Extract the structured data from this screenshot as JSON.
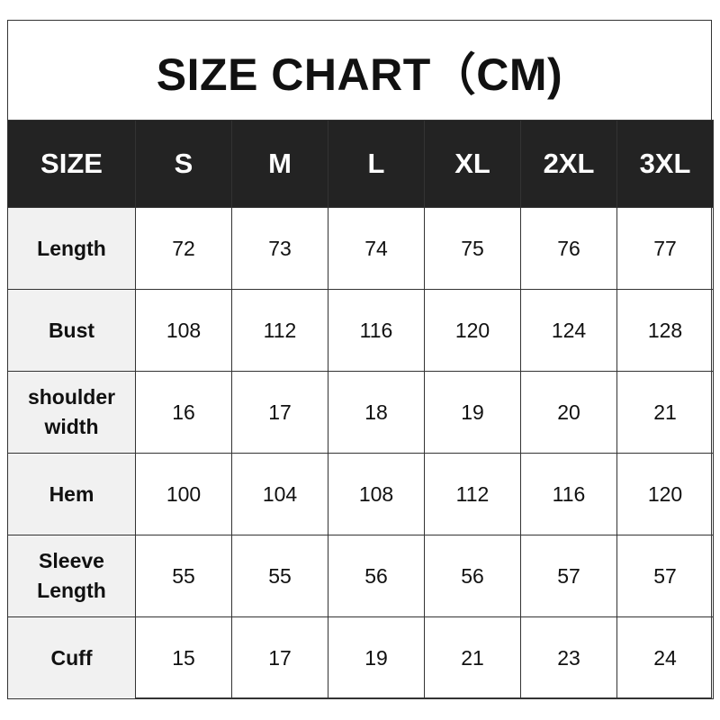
{
  "title": "SIZE CHART（CM)",
  "header": [
    "SIZE",
    "S",
    "M",
    "L",
    "XL",
    "2XL",
    "3XL"
  ],
  "rows": [
    {
      "label": "Length",
      "values": [
        "72",
        "73",
        "74",
        "75",
        "76",
        "77"
      ]
    },
    {
      "label": "Bust",
      "values": [
        "108",
        "112",
        "116",
        "120",
        "124",
        "128"
      ]
    },
    {
      "label": "shoulder width",
      "values": [
        "16",
        "17",
        "18",
        "19",
        "20",
        "21"
      ]
    },
    {
      "label": "Hem",
      "values": [
        "100",
        "104",
        "108",
        "112",
        "116",
        "120"
      ]
    },
    {
      "label": "Sleeve Length",
      "values": [
        "55",
        "55",
        "56",
        "56",
        "57",
        "57"
      ]
    },
    {
      "label": "Cuff",
      "values": [
        "15",
        "17",
        "19",
        "21",
        "23",
        "24"
      ]
    }
  ],
  "colors": {
    "header_bg": "#232323",
    "label_bg": "#f1f1f1"
  }
}
